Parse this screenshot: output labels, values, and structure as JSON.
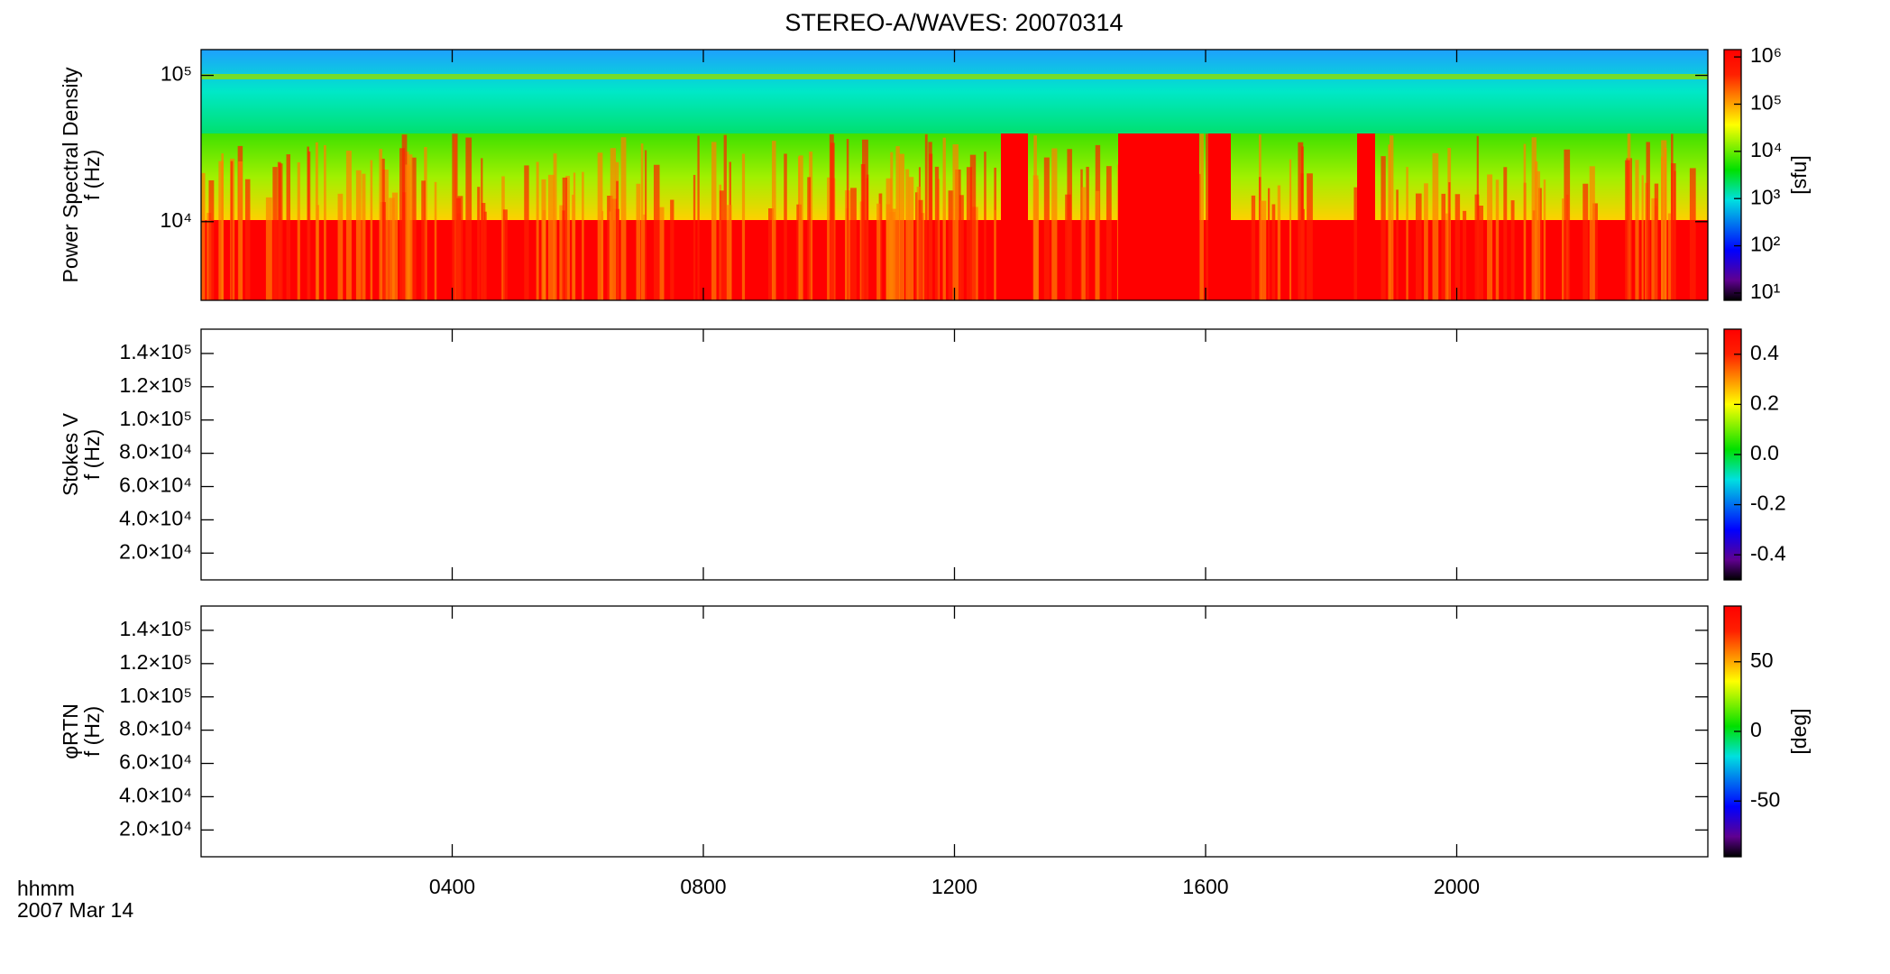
{
  "title": "STEREO-A/WAVES: 20070314",
  "time_label": "hhmm",
  "date_label": "2007 Mar 14",
  "chart_data": [
    {
      "type": "spectrogram",
      "ylabel": [
        "Power Spectral Density",
        "f (Hz)"
      ],
      "ylog": true,
      "ylim": [
        2900,
        150000
      ],
      "yticks": [
        {
          "value": 10000,
          "label": "10⁴"
        },
        {
          "value": 100000,
          "label": "10⁵"
        }
      ],
      "xlim": [
        0,
        24
      ],
      "xticks": [
        4,
        8,
        12,
        16,
        20
      ],
      "colorbar": {
        "log": true,
        "lim": [
          7,
          1430000
        ],
        "label": "[sfu]",
        "ticks": [
          {
            "value": 10,
            "label": "10¹"
          },
          {
            "value": 100,
            "label": "10²"
          },
          {
            "value": 1000,
            "label": "10³"
          },
          {
            "value": 10000,
            "label": "10⁴"
          },
          {
            "value": 100000,
            "label": "10⁵"
          },
          {
            "value": 1000000,
            "label": "10⁶"
          }
        ]
      }
    },
    {
      "type": "spectrogram",
      "ylabel": [
        "Stokes V",
        "f (Hz)"
      ],
      "ylog": false,
      "ylim": [
        3900,
        154600
      ],
      "yticks": [
        {
          "value": 20000,
          "label": "2.0×10⁴"
        },
        {
          "value": 40000,
          "label": "4.0×10⁴"
        },
        {
          "value": 60000,
          "label": "6.0×10⁴"
        },
        {
          "value": 80000,
          "label": "8.0×10⁴"
        },
        {
          "value": 100000,
          "label": "1.0×10⁵"
        },
        {
          "value": 120000,
          "label": "1.2×10⁵"
        },
        {
          "value": 140000,
          "label": "1.4×10⁵"
        }
      ],
      "xlim": [
        0,
        24
      ],
      "xticks": [
        4,
        8,
        12,
        16,
        20
      ],
      "colorbar": {
        "log": false,
        "lim": [
          -0.5,
          0.5
        ],
        "ticks": [
          -0.4,
          -0.2,
          {
            "value": 0,
            "label": "0.0"
          },
          0.2,
          0.4
        ]
      }
    },
    {
      "type": "spectrogram",
      "ylabel": [
        "φRTN",
        "f (Hz)"
      ],
      "ylog": false,
      "ylim": [
        3900,
        154600
      ],
      "yticks": [
        {
          "value": 20000,
          "label": "2.0×10⁴"
        },
        {
          "value": 40000,
          "label": "4.0×10⁴"
        },
        {
          "value": 60000,
          "label": "6.0×10⁴"
        },
        {
          "value": 80000,
          "label": "8.0×10⁴"
        },
        {
          "value": 100000,
          "label": "1.0×10⁵"
        },
        {
          "value": 120000,
          "label": "1.2×10⁵"
        },
        {
          "value": 140000,
          "label": "1.4×10⁵"
        }
      ],
      "xlim": [
        0,
        24
      ],
      "xticks": [
        {
          "value": 4,
          "label": "0400"
        },
        {
          "value": 8,
          "label": "0800"
        },
        {
          "value": 12,
          "label": "1200"
        },
        {
          "value": 16,
          "label": "1600"
        },
        {
          "value": 20,
          "label": "2000"
        }
      ],
      "colorbar": {
        "log": false,
        "lim": [
          -90,
          90
        ],
        "label": "[deg]",
        "ticks": [
          -50,
          0,
          50
        ]
      }
    }
  ]
}
